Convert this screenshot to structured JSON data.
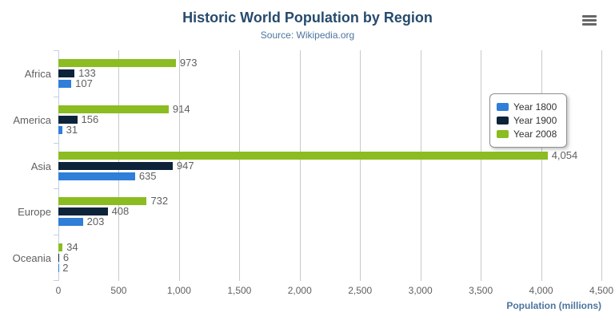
{
  "chart_data": {
    "type": "bar",
    "title": "Historic World Population by Region",
    "subtitle": "Source: Wikipedia.org",
    "categories": [
      "Africa",
      "America",
      "Asia",
      "Europe",
      "Oceania"
    ],
    "series": [
      {
        "name": "Year 1800",
        "color": "#2f7ed8",
        "values": [
          107,
          31,
          635,
          203,
          2
        ]
      },
      {
        "name": "Year 1900",
        "color": "#0d233a",
        "values": [
          133,
          156,
          947,
          408,
          6
        ]
      },
      {
        "name": "Year 2008",
        "color": "#8bbc21",
        "values": [
          973,
          914,
          4054,
          732,
          34
        ]
      }
    ],
    "data_labels": [
      [
        "107",
        "31",
        "635",
        "203",
        "2"
      ],
      [
        "133",
        "156",
        "947",
        "408",
        "6"
      ],
      [
        "973",
        "914",
        "4,054",
        "732",
        "34"
      ]
    ],
    "xlabel": "Population (millions)",
    "x_ticks": [
      "0",
      "500",
      "1,000",
      "1,500",
      "2,000",
      "2,500",
      "3,000",
      "3,500",
      "4,000",
      "4,500"
    ],
    "xlim": [
      0,
      4500
    ],
    "x_tick_interval": 500,
    "grid": true,
    "legend_position": "inside-right",
    "bar_group_order_top_to_bottom": [
      "Year 2008",
      "Year 1900",
      "Year 1800"
    ]
  },
  "toolbar": {
    "export_menu_tooltip": "Chart context menu"
  }
}
